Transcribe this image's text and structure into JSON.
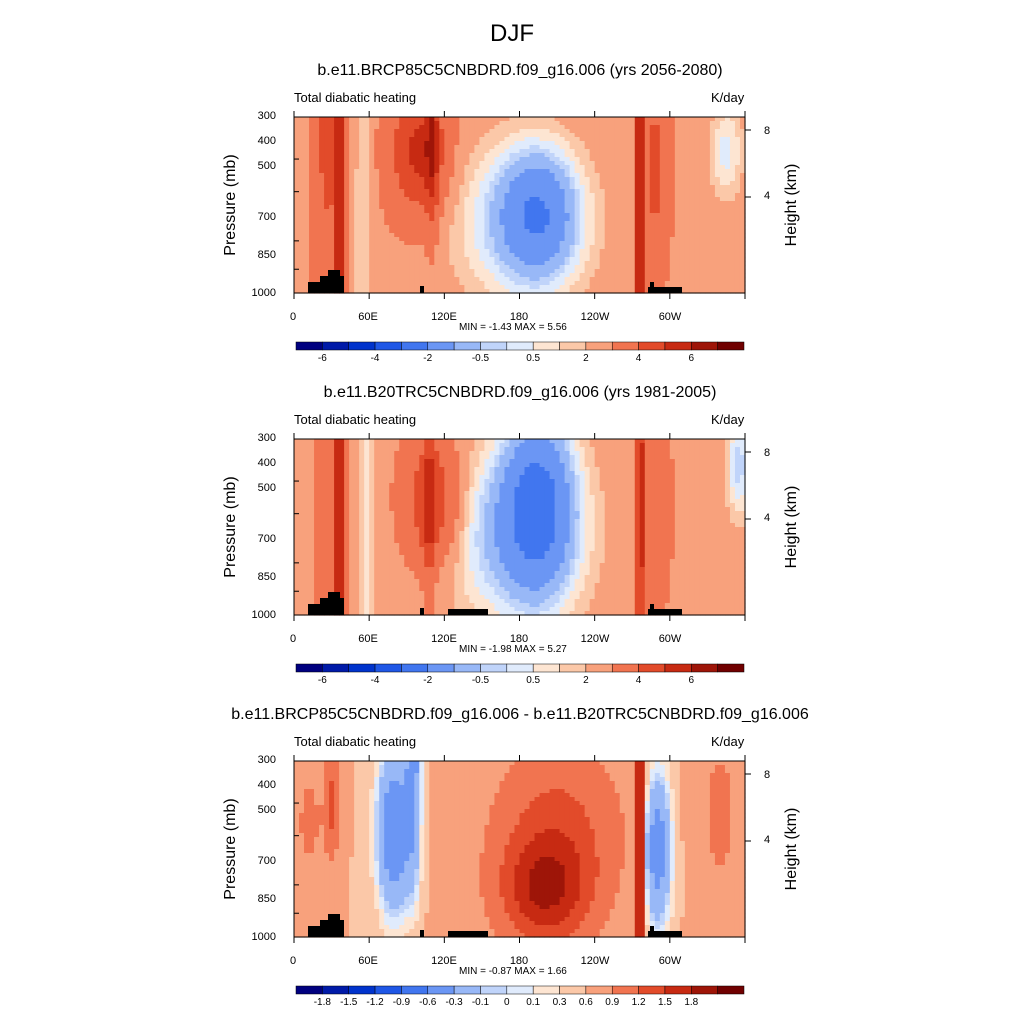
{
  "main_title": "DJF",
  "colors": {
    "palette": [
      "#00007f",
      "#001aa8",
      "#0033cc",
      "#1f57e6",
      "#4176ef",
      "#6b96f4",
      "#98b8f7",
      "#c0d4fa",
      "#e0ebfc",
      "#fde5d2",
      "#fbc8a8",
      "#f8a17c",
      "#f17450",
      "#e24b2a",
      "#c72a12",
      "#9e1508",
      "#700000"
    ],
    "land": "#000000"
  },
  "chart_data": [
    {
      "type": "heatmap",
      "title": "b.e11.BRCP85C5CNBDRD.f09_g16.006 (yrs 2056-2080)",
      "left_label": "Total diabatic heating",
      "right_label": "K/day",
      "ylabel": "Pressure (mb)",
      "ylabel_right": "Height (km)",
      "y_ticks": [
        "300",
        "400",
        "500",
        "700",
        "850",
        "1000"
      ],
      "y_right_ticks": [
        "8",
        "4"
      ],
      "x_ticks": [
        "0",
        "60E",
        "120E",
        "180",
        "120W",
        "60W"
      ],
      "xlim": [
        0,
        360
      ],
      "ylim": [
        1000,
        300
      ],
      "min": -1.43,
      "max": 5.56,
      "min_max_text": "MIN =  -1.43  MAX =   5.56",
      "colorbar_ticks": [
        "-6",
        "-4",
        "-2",
        "-0.5",
        "0.5",
        "2",
        "4",
        "6"
      ],
      "features": [
        {
          "lon": 36,
          "p_top": 300,
          "p_bottom": 1000,
          "value": 5.5
        },
        {
          "lon": 110,
          "p_top": 300,
          "p_bottom": 900,
          "value": 4.5
        },
        {
          "lon": 276,
          "p_top": 300,
          "p_bottom": 1000,
          "value": 5.0
        },
        {
          "lon": 195,
          "p_top": 400,
          "p_bottom": 850,
          "value": -1.4
        }
      ]
    },
    {
      "type": "heatmap",
      "title": "b.e11.B20TRC5CNBDRD.f09_g16.006 (yrs 1981-2005)",
      "left_label": "Total diabatic heating",
      "right_label": "K/day",
      "ylabel": "Pressure (mb)",
      "ylabel_right": "Height (km)",
      "y_ticks": [
        "300",
        "400",
        "500",
        "700",
        "850",
        "1000"
      ],
      "y_right_ticks": [
        "8",
        "4"
      ],
      "x_ticks": [
        "0",
        "60E",
        "120E",
        "180",
        "120W",
        "60W"
      ],
      "xlim": [
        0,
        360
      ],
      "ylim": [
        1000,
        300
      ],
      "min": -1.98,
      "max": 5.27,
      "min_max_text": "MIN =  -1.98  MAX =   5.27",
      "colorbar_ticks": [
        "-6",
        "-4",
        "-2",
        "-0.5",
        "0.5",
        "2",
        "4",
        "6"
      ],
      "features": [
        {
          "lon": 36,
          "p_top": 300,
          "p_bottom": 1000,
          "value": 5.2
        },
        {
          "lon": 110,
          "p_top": 350,
          "p_bottom": 900,
          "value": 4.0
        },
        {
          "lon": 276,
          "p_top": 300,
          "p_bottom": 1000,
          "value": 5.0
        },
        {
          "lon": 200,
          "p_top": 300,
          "p_bottom": 900,
          "value": -1.9
        }
      ]
    },
    {
      "type": "heatmap",
      "title": "b.e11.BRCP85C5CNBDRD.f09_g16.006 - b.e11.B20TRC5CNBDRD.f09_g16.006",
      "left_label": "Total diabatic heating",
      "right_label": "K/day",
      "ylabel": "Pressure (mb)",
      "ylabel_right": "Height (km)",
      "y_ticks": [
        "300",
        "400",
        "500",
        "700",
        "850",
        "1000"
      ],
      "y_right_ticks": [
        "8",
        "4"
      ],
      "x_ticks": [
        "0",
        "60E",
        "120E",
        "180",
        "120W",
        "60W"
      ],
      "xlim": [
        0,
        360
      ],
      "ylim": [
        1000,
        300
      ],
      "min": -0.87,
      "max": 1.66,
      "min_max_text": "MIN =  -0.87  MAX =   1.66",
      "colorbar_ticks": [
        "-1.8",
        "-1.5",
        "-1.2",
        "-0.9",
        "-0.6",
        "-0.3",
        "-0.1",
        "0",
        "0.1",
        "0.3",
        "0.6",
        "0.9",
        "1.2",
        "1.5",
        "1.8"
      ],
      "features": [
        {
          "lon": 200,
          "p_top": 400,
          "p_bottom": 900,
          "value": 1.2
        },
        {
          "lon": 80,
          "p_top": 400,
          "p_bottom": 850,
          "value": -0.8
        },
        {
          "lon": 290,
          "p_top": 400,
          "p_bottom": 900,
          "value": -0.8
        },
        {
          "lon": 276,
          "p_top": 300,
          "p_bottom": 1000,
          "value": 1.6
        }
      ]
    }
  ]
}
